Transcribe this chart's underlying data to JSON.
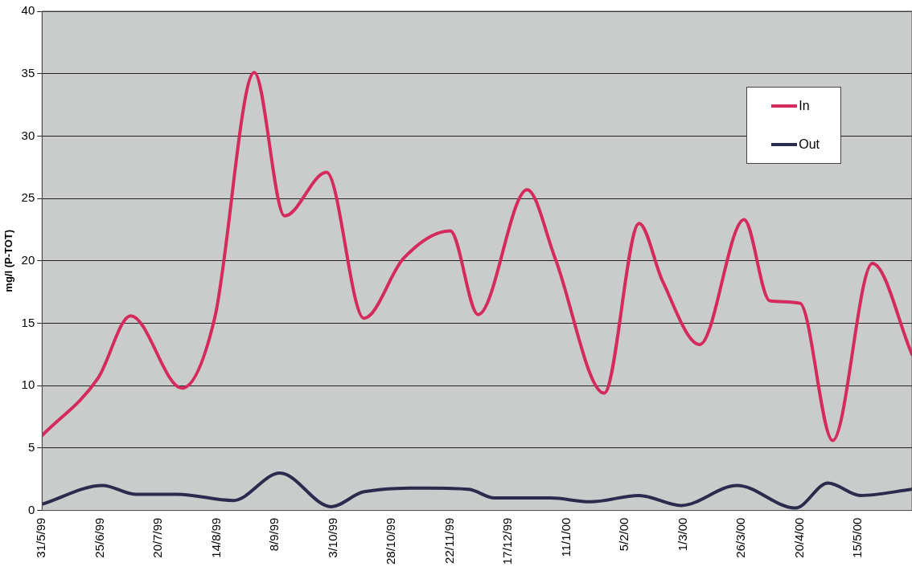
{
  "chart_data": {
    "type": "line",
    "ylabel": "mg/l (P-TOT)",
    "xlim": [
      "1999-05-31",
      "2000-06-07"
    ],
    "ylim": [
      0,
      40
    ],
    "yticks": [
      0,
      5,
      10,
      15,
      20,
      25,
      30,
      35,
      40
    ],
    "xticks": [
      {
        "value": "1999-05-31",
        "label": "31/5/99"
      },
      {
        "value": "1999-06-25",
        "label": "25/6/99"
      },
      {
        "value": "1999-07-20",
        "label": "20/7/99"
      },
      {
        "value": "1999-08-14",
        "label": "14/8/99"
      },
      {
        "value": "1999-09-08",
        "label": "8/9/99"
      },
      {
        "value": "1999-10-03",
        "label": "3/10/99"
      },
      {
        "value": "1999-10-28",
        "label": "28/10/99"
      },
      {
        "value": "1999-11-22",
        "label": "22/11/99"
      },
      {
        "value": "1999-12-17",
        "label": "17/12/99"
      },
      {
        "value": "2000-01-11",
        "label": "11/1/00"
      },
      {
        "value": "2000-02-05",
        "label": "5/2/00"
      },
      {
        "value": "2000-03-01",
        "label": "1/3/00"
      },
      {
        "value": "2000-03-26",
        "label": "26/3/00"
      },
      {
        "value": "2000-04-20",
        "label": "20/4/00"
      },
      {
        "value": "2000-05-15",
        "label": "15/5/00"
      }
    ],
    "grid": "y",
    "legend": "top right",
    "marker": "none",
    "line_style": "solid",
    "series": [
      {
        "name": "In",
        "color": "#d42a5e",
        "x": [
          "1999-05-31",
          "1999-06-24",
          "1999-07-08",
          "1999-07-30",
          "1999-08-13",
          "1999-08-30",
          "1999-09-12",
          "1999-09-30",
          "1999-10-16",
          "1999-11-02",
          "1999-11-22",
          "1999-12-04",
          "1999-12-25",
          "2000-01-06",
          "2000-01-27",
          "2000-02-11",
          "2000-02-21",
          "2000-03-08",
          "2000-03-27",
          "2000-04-07",
          "2000-04-20",
          "2000-05-04",
          "2000-05-21",
          "2000-06-07"
        ],
        "values": [
          6.0,
          10.6,
          15.6,
          9.8,
          15.4,
          35.1,
          23.6,
          27.1,
          15.4,
          20.2,
          22.4,
          15.7,
          25.7,
          20.2,
          9.4,
          23.0,
          18.4,
          13.3,
          23.3,
          16.8,
          16.6,
          5.6,
          19.8,
          12.5
        ]
      },
      {
        "name": "Out",
        "color": "#2b2b4e",
        "x": [
          "1999-05-31",
          "1999-06-26",
          "1999-07-10",
          "1999-07-28",
          "1999-08-21",
          "1999-09-10",
          "1999-10-02",
          "1999-10-16",
          "1999-11-13",
          "1999-11-30",
          "1999-12-11",
          "2000-01-04",
          "2000-01-21",
          "2000-02-11",
          "2000-02-29",
          "2000-03-24",
          "2000-04-18",
          "2000-05-02",
          "2000-05-16",
          "2000-06-07"
        ],
        "values": [
          0.5,
          2.0,
          1.3,
          1.3,
          0.8,
          3.0,
          0.3,
          1.5,
          1.8,
          1.7,
          1.0,
          1.0,
          0.7,
          1.2,
          0.4,
          2.0,
          0.2,
          2.2,
          1.2,
          1.7
        ]
      }
    ]
  }
}
